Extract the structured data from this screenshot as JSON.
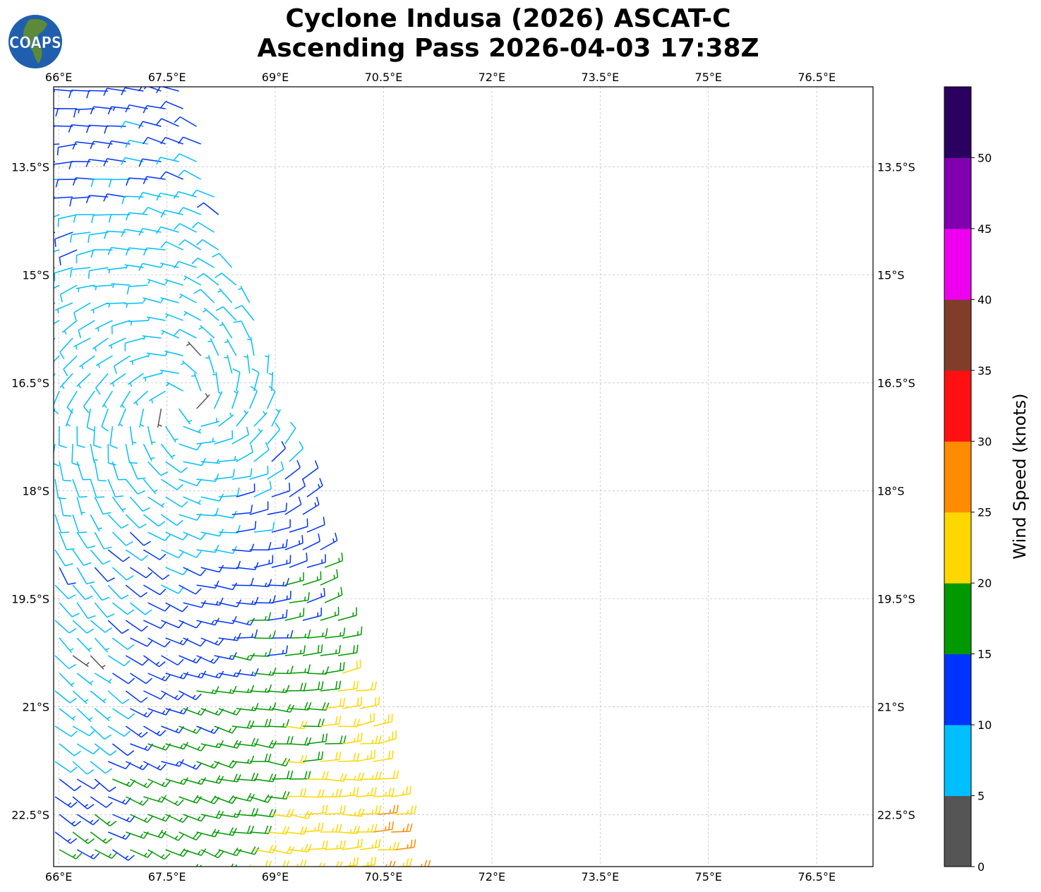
{
  "title": {
    "line1": "Cyclone Indusa (2026) ASCAT-C",
    "line2": "Ascending Pass 2026-04-03 17:38Z"
  },
  "logo": {
    "text": "COAPS"
  },
  "map": {
    "lon_range": [
      65.93,
      77.28
    ],
    "lat_range": [
      -23.22,
      -12.39
    ],
    "lon_ticks": [
      {
        "v": 66,
        "label": "66°E"
      },
      {
        "v": 67.5,
        "label": "67.5°E"
      },
      {
        "v": 69,
        "label": "69°E"
      },
      {
        "v": 70.5,
        "label": "70.5°E"
      },
      {
        "v": 72,
        "label": "72°E"
      },
      {
        "v": 73.5,
        "label": "73.5°E"
      },
      {
        "v": 75,
        "label": "75°E"
      },
      {
        "v": 76.5,
        "label": "76.5°E"
      }
    ],
    "lat_ticks": [
      {
        "v": -13.5,
        "label": "13.5°S"
      },
      {
        "v": -15,
        "label": "15°S"
      },
      {
        "v": -16.5,
        "label": "16.5°S"
      },
      {
        "v": -18,
        "label": "18°S"
      },
      {
        "v": -19.5,
        "label": "19.5°S"
      },
      {
        "v": -21,
        "label": "21°S"
      },
      {
        "v": -22.5,
        "label": "22.5°S"
      }
    ],
    "cyclone_center": {
      "lon": 67.7,
      "lat": -16.8
    },
    "swath_east_edge": [
      {
        "lat": -12.39,
        "lon": 67.8
      },
      {
        "lat": -23.22,
        "lon": 70.95
      }
    ]
  },
  "colorbar": {
    "label": "Wind Speed (knots)",
    "bounds": [
      0,
      5,
      10,
      15,
      20,
      25,
      30,
      35,
      40,
      45,
      50,
      55
    ],
    "tick_labels": [
      "0",
      "5",
      "10",
      "15",
      "20",
      "25",
      "30",
      "35",
      "40",
      "45",
      "50"
    ],
    "colors": [
      "#555555",
      "#00bfff",
      "#0033ff",
      "#009900",
      "#ffd700",
      "#ff8c00",
      "#ff1010",
      "#803d2a",
      "#ee00ee",
      "#8000b0",
      "#2a0060"
    ]
  }
}
